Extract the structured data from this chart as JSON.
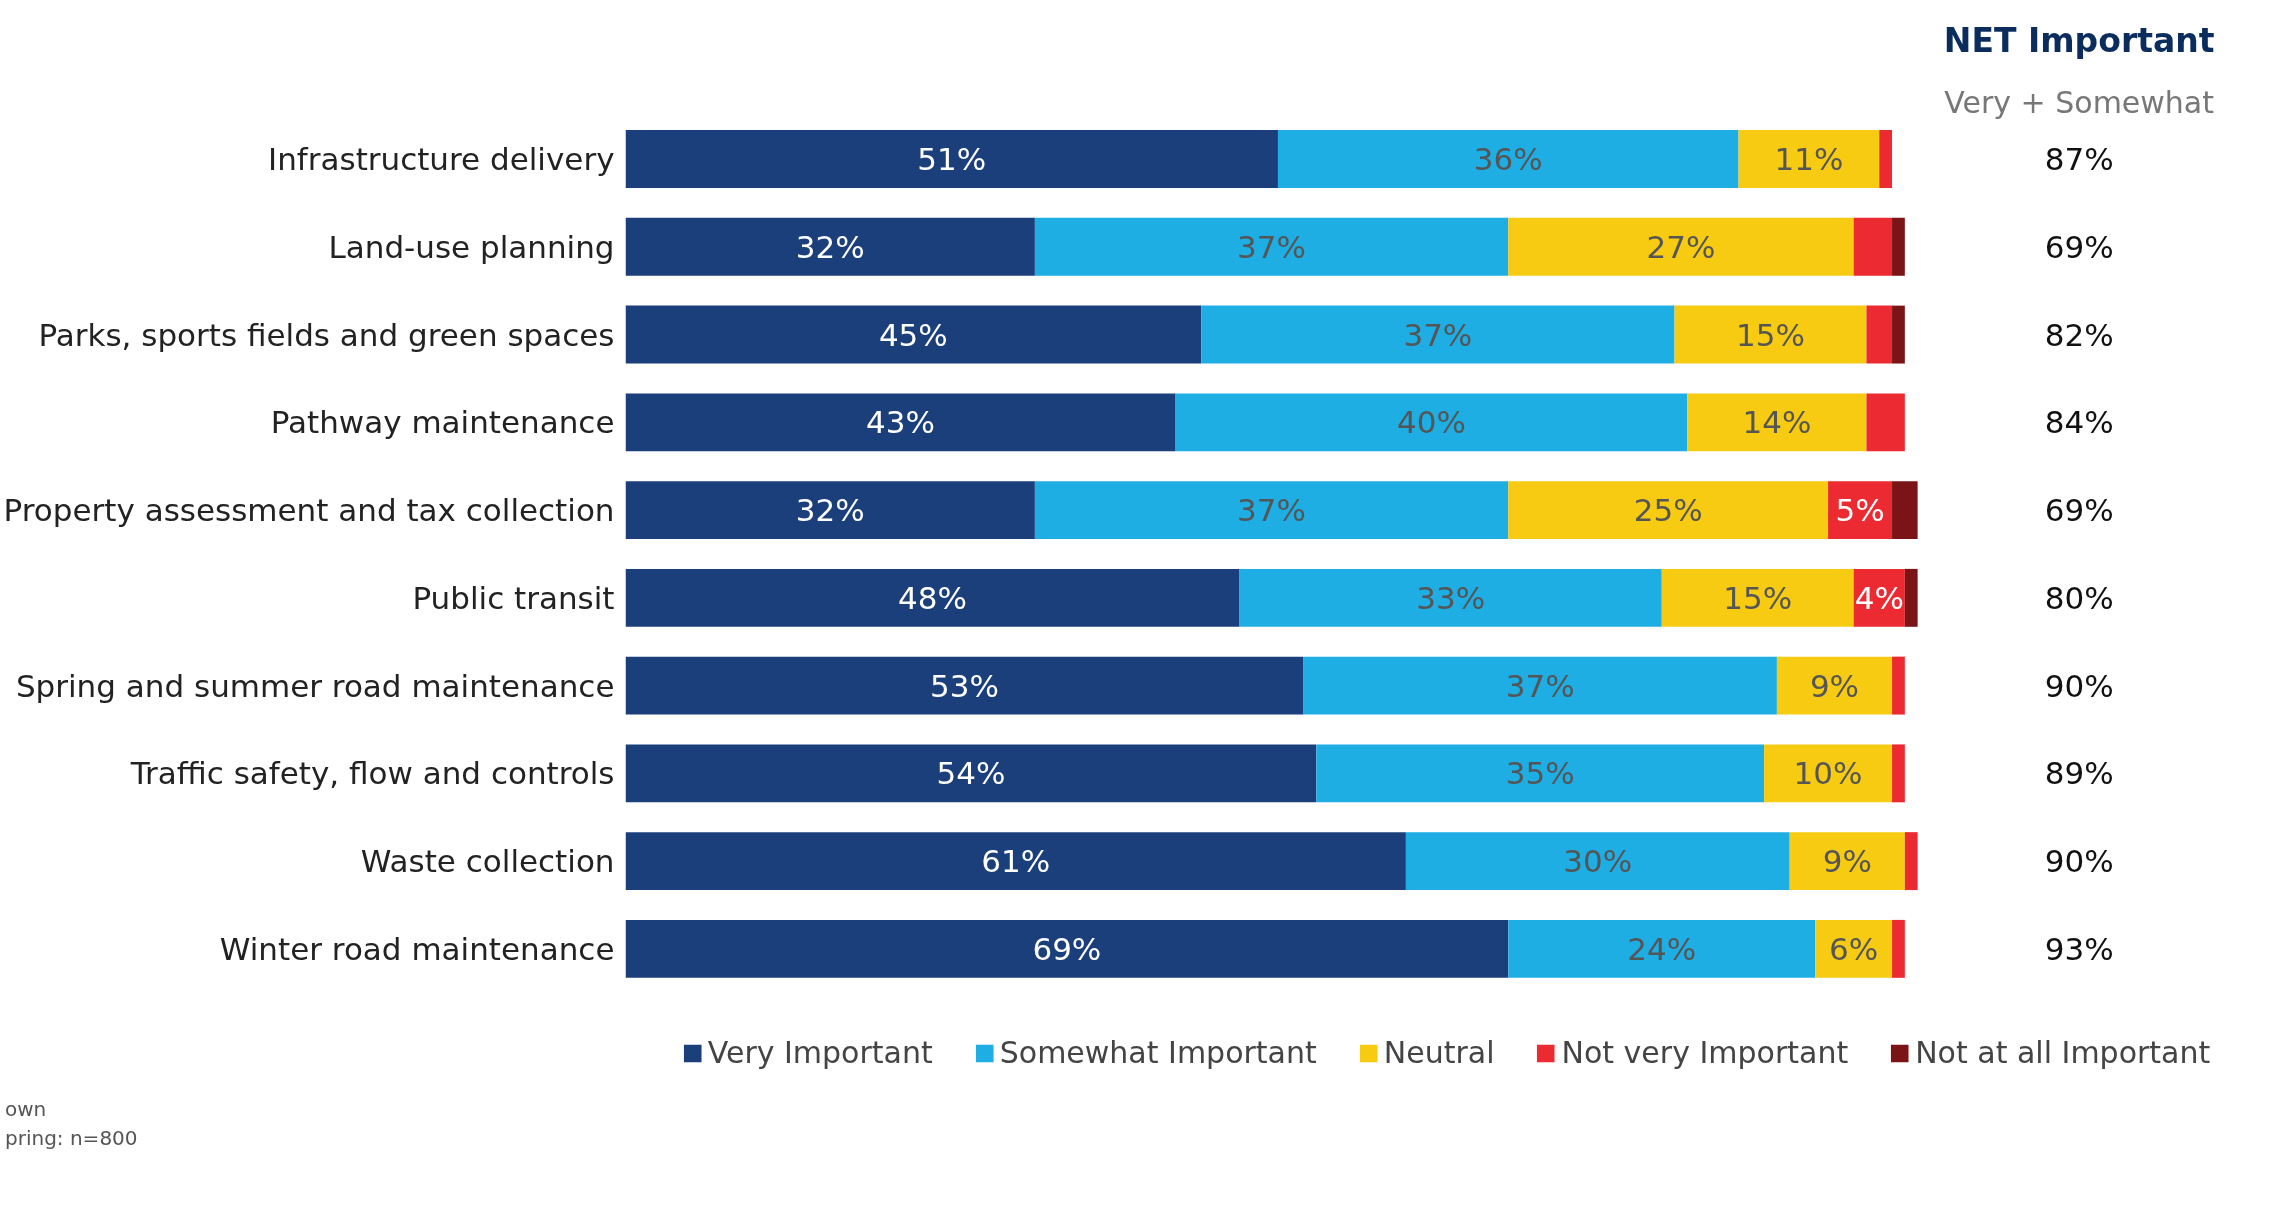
{
  "chart_data": {
    "type": "bar",
    "orientation": "horizontal",
    "stacked": true,
    "legend": "bottom",
    "grid": false,
    "categories": [
      "Infrastructure delivery",
      "Land-use planning",
      "Parks, sports fields and green spaces",
      "Pathway maintenance",
      "Property assessment and tax collection",
      "Public transit",
      "Spring and summer road maintenance",
      "Traffic safety, flow and controls",
      "Waste collection",
      "Winter road maintenance"
    ],
    "series": [
      {
        "name": "Very Important",
        "color": "#1b3f7a",
        "values": [
          51,
          32,
          45,
          43,
          32,
          48,
          53,
          54,
          61,
          69
        ],
        "value_labels": [
          "51%",
          "32%",
          "45%",
          "43%",
          "32%",
          "48%",
          "53%",
          "54%",
          "61%",
          "69%"
        ]
      },
      {
        "name": "Somewhat Important",
        "color": "#1eaee4",
        "values": [
          36,
          37,
          37,
          40,
          37,
          33,
          37,
          35,
          30,
          24
        ],
        "value_labels": [
          "36%",
          "37%",
          "37%",
          "40%",
          "37%",
          "33%",
          "37%",
          "35%",
          "30%",
          "24%"
        ]
      },
      {
        "name": "Neutral",
        "color": "#f6cb12",
        "values": [
          11,
          27,
          15,
          14,
          25,
          15,
          9,
          10,
          9,
          6
        ],
        "value_labels": [
          "11%",
          "27%",
          "15%",
          "14%",
          "25%",
          "15%",
          "9%",
          "10%",
          "9%",
          "6%"
        ]
      },
      {
        "name": "Not very Important",
        "color": "#ec2a32",
        "values": [
          1,
          3,
          2,
          3,
          5,
          4,
          1,
          1,
          1,
          1
        ],
        "value_labels": [
          null,
          null,
          null,
          null,
          "5%",
          "4%",
          null,
          null,
          null,
          null
        ]
      },
      {
        "name": "Not at all Important",
        "color": "#7b1416",
        "values": [
          0,
          1,
          1,
          0,
          2,
          1,
          0,
          0,
          0,
          0
        ],
        "value_labels": [
          null,
          null,
          null,
          null,
          null,
          null,
          null,
          null,
          null,
          null
        ]
      }
    ],
    "annotations": [
      "NET Important",
      "Very + Somewhat",
      "87%",
      "69%",
      "82%",
      "84%",
      "69%",
      "80%",
      "90%",
      "89%",
      "90%",
      "93%",
      "own",
      "pring: n=800"
    ]
  }
}
